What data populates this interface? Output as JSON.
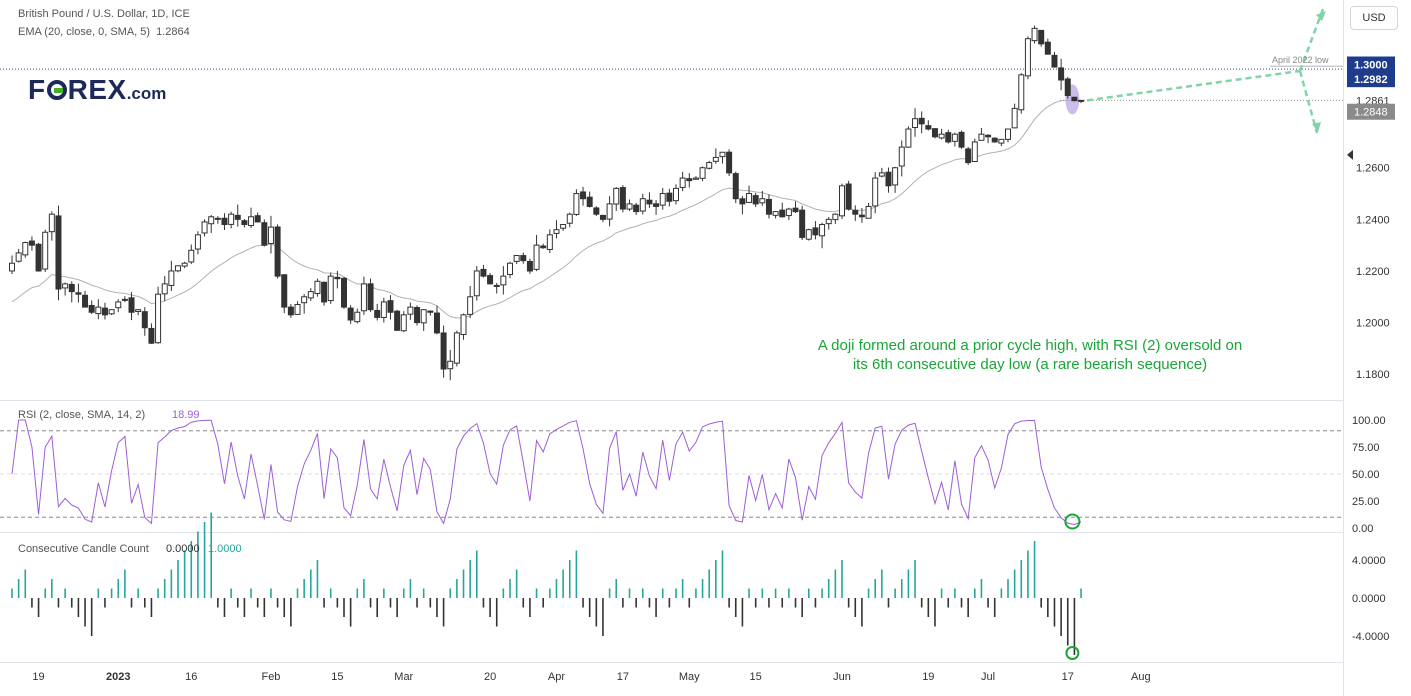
{
  "header": {
    "symbol": "British Pound / U.S. Dollar, 1D, ICE",
    "ema_label": "EMA (20, close, 0, SMA, 5)",
    "ema_value": "1.2864",
    "currency_button": "USD"
  },
  "logo": {
    "f": "F",
    "rex": "REX",
    "com": ".com"
  },
  "annotation": {
    "line1": "A doji formed around a prior cycle high, with RSI (2) oversold on",
    "line2": "its 6th consecutive day low (a rare bearish sequence)"
  },
  "price_labels": {
    "level_1": "1.3000",
    "level_2": "1.2982",
    "level_3": "1.2861",
    "level_4": "1.2848",
    "april_low": "April 2022 low"
  },
  "rsi_panel": {
    "label": "RSI (2, close, SMA, 14, 2)",
    "value": "18.99"
  },
  "ccc_panel": {
    "label": "Consecutive Candle Count",
    "value_1": "0.0000",
    "value_2": "1.0000"
  },
  "colors": {
    "rsi": "#9c5fd6",
    "count_up": "#26a69a",
    "count_down": "#333333",
    "ema": "#b2b2b2",
    "annotation": "#1aa637",
    "arrows": "#7fd4a8",
    "doji_highlight": "#b9a7e6"
  },
  "chart_data": {
    "type": "candlestick",
    "price_axis": {
      "ylim": [
        1.17,
        1.325
      ],
      "ticks": [
        "1.1800",
        "1.2000",
        "1.2200",
        "1.2400",
        "1.2600"
      ]
    },
    "rsi_axis": {
      "ylim": [
        0,
        100
      ],
      "ticks": [
        "100.00",
        "75.00",
        "50.00",
        "25.00",
        "0.00"
      ],
      "levels": [
        10,
        90
      ]
    },
    "count_axis": {
      "ylim": [
        -6,
        6
      ],
      "ticks": [
        "4.0000",
        "0.0000",
        "-4.0000"
      ]
    },
    "x_ticks": [
      {
        "label": "19",
        "i": 4
      },
      {
        "label": "2023",
        "i": 16
      },
      {
        "label": "16",
        "i": 27
      },
      {
        "label": "Feb",
        "i": 39
      },
      {
        "label": "15",
        "i": 49
      },
      {
        "label": "Mar",
        "i": 59
      },
      {
        "label": "20",
        "i": 72
      },
      {
        "label": "Apr",
        "i": 82
      },
      {
        "label": "17",
        "i": 92
      },
      {
        "label": "May",
        "i": 102
      },
      {
        "label": "15",
        "i": 112
      },
      {
        "label": "Jun",
        "i": 125
      },
      {
        "label": "19",
        "i": 138
      },
      {
        "label": "Jul",
        "i": 147
      },
      {
        "label": "17",
        "i": 159
      },
      {
        "label": "Aug",
        "i": 170
      }
    ],
    "closes": [
      1.223,
      1.227,
      1.231,
      1.23,
      1.22,
      1.235,
      1.242,
      1.213,
      1.215,
      1.212,
      1.211,
      1.206,
      1.204,
      1.206,
      1.203,
      1.205,
      1.208,
      1.209,
      1.204,
      1.205,
      1.198,
      1.192,
      1.211,
      1.215,
      1.22,
      1.222,
      1.223,
      1.228,
      1.234,
      1.239,
      1.241,
      1.24,
      1.238,
      1.242,
      1.24,
      1.238,
      1.241,
      1.239,
      1.23,
      1.237,
      1.218,
      1.206,
      1.203,
      1.207,
      1.21,
      1.212,
      1.216,
      1.208,
      1.218,
      1.217,
      1.206,
      1.201,
      1.204,
      1.215,
      1.205,
      1.202,
      1.208,
      1.204,
      1.197,
      1.203,
      1.206,
      1.2,
      1.205,
      1.204,
      1.196,
      1.182,
      1.185,
      1.196,
      1.203,
      1.21,
      1.22,
      1.218,
      1.215,
      1.214,
      1.218,
      1.223,
      1.226,
      1.224,
      1.22,
      1.23,
      1.229,
      1.234,
      1.236,
      1.238,
      1.242,
      1.25,
      1.248,
      1.245,
      1.242,
      1.24,
      1.246,
      1.252,
      1.244,
      1.246,
      1.243,
      1.248,
      1.246,
      1.245,
      1.25,
      1.247,
      1.252,
      1.256,
      1.255,
      1.256,
      1.26,
      1.262,
      1.264,
      1.266,
      1.258,
      1.248,
      1.246,
      1.25,
      1.246,
      1.248,
      1.242,
      1.243,
      1.241,
      1.244,
      1.243,
      1.233,
      1.236,
      1.234,
      1.238,
      1.24,
      1.242,
      1.253,
      1.244,
      1.242,
      1.241,
      1.245,
      1.256,
      1.258,
      1.253,
      1.26,
      1.268,
      1.275,
      1.279,
      1.277,
      1.275,
      1.272,
      1.273,
      1.27,
      1.273,
      1.268,
      1.262,
      1.27,
      1.273,
      1.272,
      1.27,
      1.271,
      1.275,
      1.283,
      1.296,
      1.31,
      1.314,
      1.308,
      1.304,
      1.299,
      1.294,
      1.288,
      1.286,
      1.2861
    ]
  }
}
